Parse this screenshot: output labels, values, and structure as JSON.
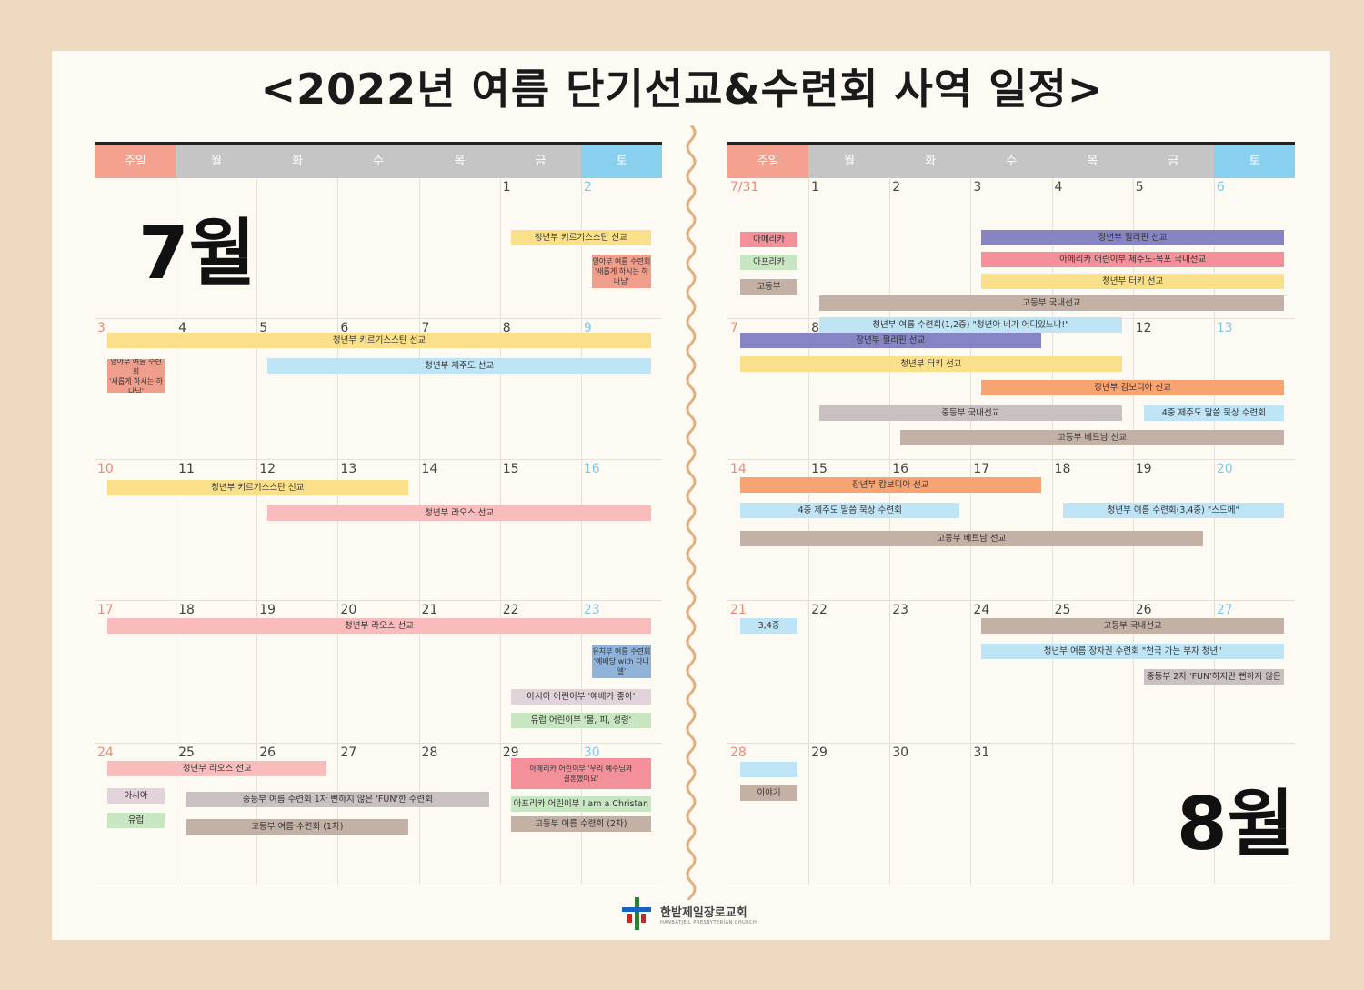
{
  "title": "<2022년 여름 단기선교&수련회 사역 일정>",
  "weekdays": [
    "주일",
    "월",
    "화",
    "수",
    "목",
    "금",
    "토"
  ],
  "colors": {
    "sun_header": "#f4a18f",
    "weekday_header": "#c5c5c5",
    "sat_header": "#89d0ee",
    "yellow": "#fbe08b",
    "blue": "#bfe4f5",
    "pink": "#f8bcbc",
    "salmon": "#f09e8c",
    "purple": "#8684c2",
    "rose": "#f3909a",
    "taupe": "#c3b1a6",
    "grey": "#c9c1bf",
    "orange": "#f7a472",
    "green": "#c8e6c1",
    "lavender": "#e2d3da",
    "steel": "#8fb3d9"
  },
  "july": {
    "month_label": "7월",
    "weeks": [
      [
        "",
        "",
        "",
        "",
        "",
        "1",
        "2"
      ],
      [
        "3",
        "4",
        "5",
        "6",
        "7",
        "8",
        "9"
      ],
      [
        "10",
        "11",
        "12",
        "13",
        "14",
        "15",
        "16"
      ],
      [
        "17",
        "18",
        "19",
        "20",
        "21",
        "22",
        "23"
      ],
      [
        "24",
        "25",
        "26",
        "27",
        "28",
        "29",
        "30"
      ]
    ],
    "events": [
      {
        "text": "청년부 키르기스스탄 선교",
        "color": "yellow"
      },
      {
        "l1": "영아부 여름 수련회",
        "l2": "'새롭게 하시는 하나님'",
        "color": "salmon"
      },
      {
        "text": "청년부 키르기스스탄 선교",
        "color": "yellow"
      },
      {
        "l1": "영아부 여름 수련회",
        "l2": "'새롭게 하시는 하나님'",
        "color": "salmon"
      },
      {
        "text": "청년부 제주도 선교",
        "color": "blue"
      },
      {
        "text": "청년부 키르기스스탄 선교",
        "color": "yellow"
      },
      {
        "text": "청년부 라오스 선교",
        "color": "pink"
      },
      {
        "text": "청년부 라오스 선교",
        "color": "pink"
      },
      {
        "l1": "유치부 여름 수련회",
        "l2": "'예배당 with 다니엘'",
        "color": "steel"
      },
      {
        "text": "아시아 어린이부 '예배가 좋아'",
        "color": "lavender"
      },
      {
        "text": "유럽 어린이부 '물, 피, 성령'",
        "color": "green"
      },
      {
        "text": "청년부 라오스 선교",
        "color": "pink"
      },
      {
        "text": "아시아",
        "color": "lavender"
      },
      {
        "text": "유럽",
        "color": "green"
      },
      {
        "text": "중등부 여름 수련회 1차 뻔하지 않은 'FUN'한 수련회",
        "color": "grey"
      },
      {
        "text": "고등부 여름 수련회 (1차)",
        "color": "taupe"
      },
      {
        "l1": "아메리카 어린이부 '우리 예수님과",
        "l2": "결혼했어요'",
        "color": "rose"
      },
      {
        "text": "아프리카 어린이부 I am a Christan",
        "color": "green"
      },
      {
        "text": "고등부 여름 수련회 (2차)",
        "color": "taupe"
      }
    ]
  },
  "august": {
    "month_label": "8월",
    "weeks": [
      [
        "7/31",
        "1",
        "2",
        "3",
        "4",
        "5",
        "6"
      ],
      [
        "7",
        "8",
        "9",
        "10",
        "11",
        "12",
        "13"
      ],
      [
        "14",
        "15",
        "16",
        "17",
        "18",
        "19",
        "20"
      ],
      [
        "21",
        "22",
        "23",
        "24",
        "25",
        "26",
        "27"
      ],
      [
        "28",
        "29",
        "30",
        "31",
        "",
        "",
        ""
      ]
    ],
    "events": [
      {
        "text": "아메리카",
        "color": "rose"
      },
      {
        "text": "아프리카",
        "color": "green"
      },
      {
        "text": "고등부",
        "color": "taupe"
      },
      {
        "text": "장년부 필리핀 선교",
        "color": "purple"
      },
      {
        "text": "아메리카 어린이부 제주도-목포 국내선교",
        "color": "rose"
      },
      {
        "text": "청년부 터키 선교",
        "color": "yellow"
      },
      {
        "text": "고등부 국내선교",
        "color": "taupe"
      },
      {
        "text": "청년부 여름 수련회(1,2중) \"청년아 네가 어디있느냐!\"",
        "color": "blue"
      },
      {
        "text": "장년부 필리핀 선교",
        "color": "purple"
      },
      {
        "text": "청년부 터키 선교",
        "color": "yellow"
      },
      {
        "text": "장년부 캄보디아 선교",
        "color": "orange"
      },
      {
        "text": "중등부 국내선교",
        "color": "grey"
      },
      {
        "text": "4중 제주도 말씀 묵상 수련회",
        "color": "blue"
      },
      {
        "text": "고등부 베트남 선교",
        "color": "taupe"
      },
      {
        "text": "장년부 캄보디아 선교",
        "color": "orange"
      },
      {
        "text": "4중 제주도 말씀 묵상 수련회",
        "color": "blue"
      },
      {
        "text": "청년부 여름 수련회(3,4중) \"스드메\"",
        "color": "blue"
      },
      {
        "text": "고등부 베트남 선교",
        "color": "taupe"
      },
      {
        "text": "3,4중",
        "color": "blue"
      },
      {
        "text": "고등부 국내선교",
        "color": "taupe"
      },
      {
        "text": "청년부 여름 장자권 수련회 \"천국 가는 부자 청년\"",
        "color": "blue"
      },
      {
        "text": "중등부 2차 'FUN'하지만 뻔하지 않은",
        "color": "grey"
      },
      {
        "text": "",
        "color": "blue"
      },
      {
        "text": "이야기",
        "color": "taupe"
      }
    ]
  },
  "church": {
    "name": "한밭제일장로교회",
    "english": "HANBATJEIL PRESBYTERIAN CHURCH"
  }
}
